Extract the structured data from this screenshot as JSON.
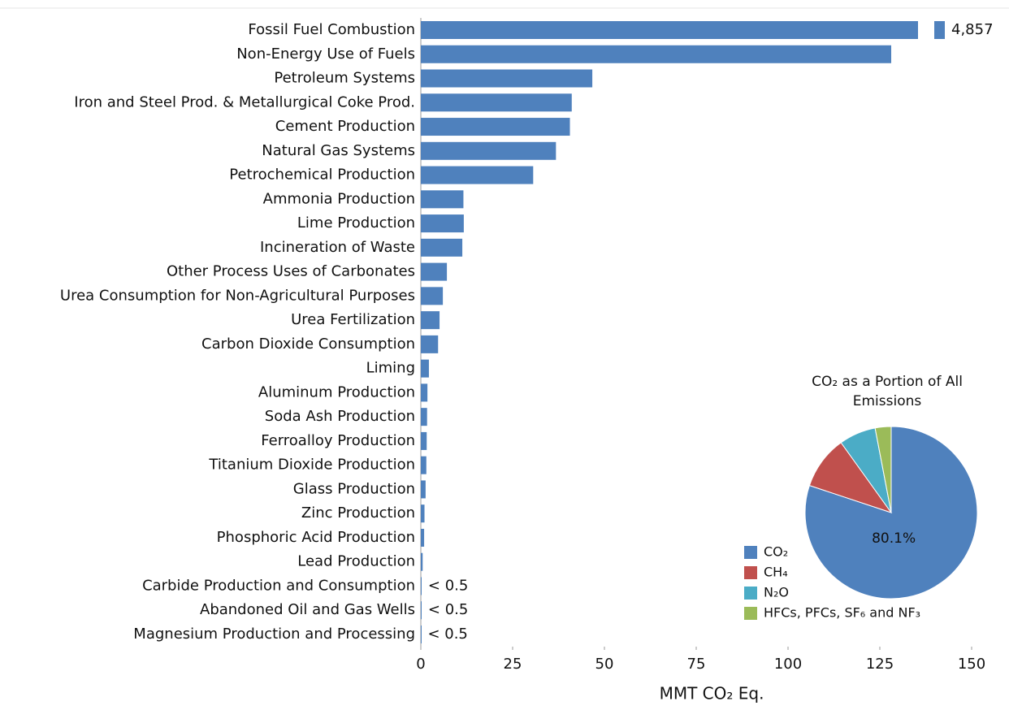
{
  "chart_data": [
    {
      "type": "bar",
      "orientation": "horizontal",
      "categories": [
        "Fossil Fuel Combustion",
        "Non-Energy Use of Fuels",
        "Petroleum Systems",
        "Iron and Steel Prod. & Metallurgical Coke Prod.",
        "Cement Production",
        "Natural Gas Systems",
        "Petrochemical Production",
        "Ammonia Production",
        "Lime Production",
        "Incineration of Waste",
        "Other Process Uses of Carbonates",
        "Urea Consumption for Non-Agricultural Purposes",
        "Urea Fertilization",
        "Carbon Dioxide Consumption",
        "Liming",
        "Aluminum Production",
        "Soda Ash Production",
        "Ferroalloy Production",
        "Titanium Dioxide Production",
        "Glass Production",
        "Zinc Production",
        "Phosphoric Acid Production",
        "Lead Production",
        "Carbide Production and Consumption",
        "Abandoned Oil and Gas Wells",
        "Magnesium Production and Processing"
      ],
      "values": [
        4857,
        128.1,
        46.7,
        41.1,
        40.6,
        36.8,
        30.6,
        11.6,
        11.7,
        11.3,
        7.1,
        6.0,
        5.1,
        4.7,
        2.2,
        1.8,
        1.7,
        1.6,
        1.5,
        1.3,
        1.0,
        0.9,
        0.5,
        0.2,
        0.2,
        0.1
      ],
      "value_labels": [
        "4,857",
        null,
        null,
        null,
        null,
        null,
        null,
        null,
        null,
        null,
        null,
        null,
        null,
        null,
        null,
        null,
        null,
        null,
        null,
        null,
        null,
        null,
        null,
        "< 0.5",
        "< 0.5",
        "< 0.5"
      ],
      "color": "#4f81bd",
      "xlim": [
        0,
        150
      ],
      "xticks": [
        0,
        25,
        50,
        75,
        100,
        125,
        150
      ],
      "xlabel": "MMT CO₂ Eq."
    },
    {
      "type": "pie",
      "title": "CO₂ as a Portion of All Emissions",
      "categories": [
        "CO₂",
        "CH₄",
        "N₂O",
        "HFCs, PFCs, SF₆ and NF₃"
      ],
      "values": [
        80.1,
        10.0,
        6.9,
        3.0
      ],
      "value_labels": [
        "80.1%",
        null,
        null,
        null
      ],
      "colors": [
        "#4f81bd",
        "#c0504d",
        "#4bacc6",
        "#9bbb59"
      ]
    }
  ]
}
